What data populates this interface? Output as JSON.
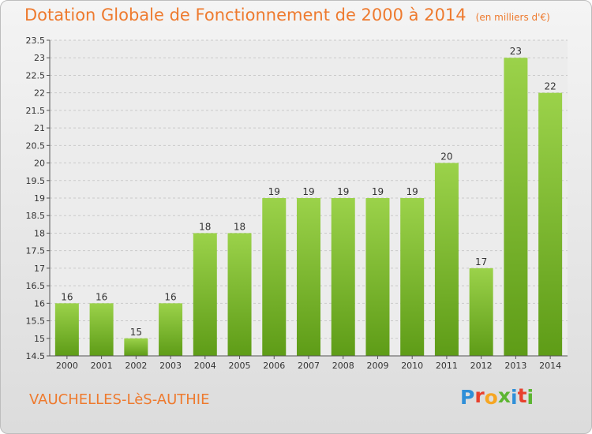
{
  "header": {
    "title": "Dotation Globale de Fonctionnement de 2000 à 2014",
    "subtitle": "(en milliers d'€)"
  },
  "footer": {
    "commune": "VAUCHELLES-LèS-AUTHIE",
    "logo_text": "Proxiti",
    "logo_colors": [
      "#2f8fd8",
      "#e8402d",
      "#f6a623",
      "#5cb531",
      "#2f8fd8",
      "#e8402d",
      "#5cb531"
    ]
  },
  "colors": {
    "bar_top": "#9bd24a",
    "bar_bottom": "#5e9c17",
    "title": "#ee7a2e",
    "axis": "#555555"
  },
  "chart_data": {
    "type": "bar",
    "categories": [
      "2000",
      "2001",
      "2002",
      "2003",
      "2004",
      "2005",
      "2006",
      "2007",
      "2008",
      "2009",
      "2010",
      "2011",
      "2012",
      "2013",
      "2014"
    ],
    "values": [
      16,
      16,
      15,
      16,
      18,
      18,
      19,
      19,
      19,
      19,
      19,
      20,
      17,
      23,
      22
    ],
    "data_labels": [
      "16",
      "16",
      "15",
      "16",
      "18",
      "18",
      "19",
      "19",
      "19",
      "19",
      "19",
      "20",
      "17",
      "23",
      "22"
    ],
    "ylim": [
      14.5,
      23.5
    ],
    "yticks": [
      "14.5",
      "15",
      "15.5",
      "16",
      "16.5",
      "17",
      "17.5",
      "18",
      "18.5",
      "19",
      "19.5",
      "20",
      "20.5",
      "21",
      "21.5",
      "22",
      "22.5",
      "23",
      "23.5"
    ],
    "grid": true,
    "legend": "none"
  }
}
